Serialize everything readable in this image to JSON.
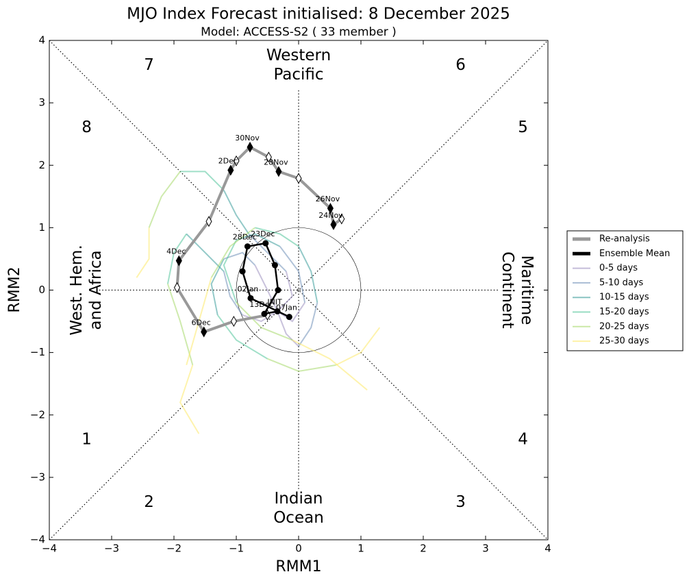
{
  "chart_data": {
    "type": "phase",
    "title": "MJO Index Forecast initialised:  8  December 2025",
    "subtitle": "Model: ACCESS-S2 ( 33 member )",
    "xlabel": "RMM1",
    "ylabel": "RMM2",
    "xlim": [
      -4,
      4
    ],
    "ylim": [
      -4,
      4
    ],
    "xticks": [
      {
        "value": -4,
        "label": "−4"
      },
      {
        "value": -3,
        "label": "−3"
      },
      {
        "value": -2,
        "label": "−2"
      },
      {
        "value": -1,
        "label": "−1"
      },
      0,
      1,
      2,
      3,
      4
    ],
    "yticks": [
      {
        "value": -4,
        "label": "−4"
      },
      {
        "value": -3,
        "label": "−3"
      },
      {
        "value": -2,
        "label": "−2"
      },
      {
        "value": -1,
        "label": "−1"
      },
      0,
      1,
      2,
      3,
      4
    ],
    "phase_labels": [
      "1",
      "2",
      "3",
      "4",
      "5",
      "6",
      "7",
      "8"
    ],
    "region_labels": {
      "top": [
        "Western",
        "Pacific"
      ],
      "bottom": [
        "Indian",
        "Ocean"
      ],
      "left": [
        "West. Hem.",
        "and Africa"
      ],
      "right": [
        "Maritime",
        "Continent"
      ]
    },
    "reanalysis": {
      "name": "Re-analysis",
      "color": "#999999",
      "x": [
        0.69,
        0.56,
        0.51,
        0.0,
        -0.32,
        -0.48,
        -0.78,
        -1.0,
        -1.09,
        -1.44,
        -1.92,
        -1.95,
        -1.52,
        -1.04,
        -0.5
      ],
      "y": [
        1.14,
        1.05,
        1.31,
        1.79,
        1.9,
        2.13,
        2.29,
        2.07,
        1.92,
        1.1,
        0.47,
        0.04,
        -0.67,
        -0.5,
        -0.4
      ],
      "labels": [
        null,
        "24Nov",
        "26Nov",
        null,
        "28Nov",
        null,
        "30Nov",
        null,
        "2Dec",
        null,
        "4Dec",
        null,
        "6Dec",
        null,
        null
      ]
    },
    "ensemble_mean": {
      "name": "Ensemble Mean",
      "color": "#000000",
      "x": [
        -0.34,
        -0.55,
        -0.33,
        -0.38,
        -0.53,
        -0.82,
        -0.9,
        -0.77,
        -0.15
      ],
      "y": [
        -0.34,
        -0.38,
        0.0,
        0.4,
        0.75,
        0.7,
        0.3,
        -0.13,
        -0.43
      ],
      "labels": [
        "INIT",
        "13Dec",
        null,
        null,
        "23Dec",
        "28Dec",
        null,
        "02Jan",
        "07Jan"
      ]
    },
    "series": [
      {
        "name": "0-5 days",
        "color": "#9d8fc0",
        "lines": [
          {
            "x": [
              -0.34,
              -0.1,
              -0.2
            ],
            "y": [
              -0.34,
              -0.1,
              0.3
            ]
          },
          {
            "x": [
              -0.34,
              -0.2,
              0.0
            ],
            "y": [
              -0.34,
              -0.7,
              -0.9
            ]
          },
          {
            "x": [
              -0.34,
              -0.5,
              -0.7
            ],
            "y": [
              -0.34,
              0.0,
              0.4
            ]
          },
          {
            "x": [
              -0.34,
              -0.6,
              -0.9
            ],
            "y": [
              -0.34,
              -0.5,
              -0.4
            ]
          },
          {
            "x": [
              -0.34,
              -0.1,
              0.1
            ],
            "y": [
              -0.34,
              -0.5,
              -0.2
            ]
          }
        ]
      },
      {
        "name": "5-10 days",
        "color": "#6f8fb8",
        "lines": [
          {
            "x": [
              -0.2,
              -0.5,
              -0.8
            ],
            "y": [
              0.3,
              0.6,
              0.9
            ]
          },
          {
            "x": [
              0.0,
              0.2,
              0.3
            ],
            "y": [
              -0.9,
              -0.6,
              -0.2
            ]
          },
          {
            "x": [
              -0.7,
              -0.9,
              -1.2
            ],
            "y": [
              0.4,
              0.6,
              0.5
            ]
          },
          {
            "x": [
              -0.9,
              -1.1,
              -1.2
            ],
            "y": [
              -0.4,
              -0.1,
              0.3
            ]
          },
          {
            "x": [
              0.1,
              0.0,
              -0.3
            ],
            "y": [
              -0.2,
              0.3,
              0.7
            ]
          }
        ]
      },
      {
        "name": "10-15 days",
        "color": "#3b9c9a",
        "lines": [
          {
            "x": [
              -0.8,
              -1.0,
              -1.2
            ],
            "y": [
              0.9,
              1.2,
              1.6
            ]
          },
          {
            "x": [
              0.3,
              0.2,
              0.0
            ],
            "y": [
              -0.2,
              0.3,
              0.7
            ]
          },
          {
            "x": [
              -1.2,
              -1.4,
              -1.3
            ],
            "y": [
              0.5,
              0.1,
              -0.4
            ]
          },
          {
            "x": [
              -1.2,
              -1.5,
              -1.8
            ],
            "y": [
              0.3,
              0.6,
              0.9
            ]
          },
          {
            "x": [
              -0.3,
              -0.7,
              -1.0
            ],
            "y": [
              0.7,
              0.9,
              0.8
            ]
          }
        ]
      },
      {
        "name": "15-20 days",
        "color": "#52c59a",
        "lines": [
          {
            "x": [
              -1.2,
              -1.5,
              -1.9
            ],
            "y": [
              1.6,
              1.9,
              1.9
            ]
          },
          {
            "x": [
              0.0,
              -0.3,
              -0.7
            ],
            "y": [
              0.7,
              0.9,
              1.0
            ]
          },
          {
            "x": [
              -1.3,
              -1.0,
              -0.5
            ],
            "y": [
              -0.4,
              -0.8,
              -1.1
            ]
          },
          {
            "x": [
              -1.8,
              -2.0,
              -2.1
            ],
            "y": [
              0.9,
              0.6,
              0.1
            ]
          },
          {
            "x": [
              -1.0,
              -1.2,
              -1.0
            ],
            "y": [
              0.8,
              0.4,
              -0.2
            ]
          }
        ]
      },
      {
        "name": "20-25 days",
        "color": "#a6d96a",
        "lines": [
          {
            "x": [
              -1.9,
              -2.2,
              -2.4
            ],
            "y": [
              1.9,
              1.5,
              1.0
            ]
          },
          {
            "x": [
              -0.7,
              -1.1,
              -1.4
            ],
            "y": [
              1.0,
              0.7,
              0.2
            ]
          },
          {
            "x": [
              -0.5,
              0.0,
              0.6
            ],
            "y": [
              -1.1,
              -1.3,
              -1.2
            ]
          },
          {
            "x": [
              -2.1,
              -1.9,
              -1.7
            ],
            "y": [
              0.1,
              -0.5,
              -1.2
            ]
          },
          {
            "x": [
              -1.0,
              -0.6,
              -0.1
            ],
            "y": [
              -0.2,
              -0.6,
              -0.8
            ]
          }
        ]
      },
      {
        "name": "25-30 days",
        "color": "#fde96a",
        "lines": [
          {
            "x": [
              -2.4,
              -2.4,
              -2.6
            ],
            "y": [
              1.0,
              0.5,
              0.2
            ]
          },
          {
            "x": [
              -1.4,
              -1.6,
              -1.8
            ],
            "y": [
              0.2,
              -0.5,
              -1.2
            ]
          },
          {
            "x": [
              0.6,
              1.0,
              1.3
            ],
            "y": [
              -1.2,
              -1.0,
              -0.6
            ]
          },
          {
            "x": [
              -1.7,
              -1.9,
              -1.6
            ],
            "y": [
              -1.2,
              -1.8,
              -2.3
            ]
          },
          {
            "x": [
              -0.1,
              0.5,
              1.1
            ],
            "y": [
              -0.8,
              -1.1,
              -1.6
            ]
          }
        ]
      }
    ]
  }
}
